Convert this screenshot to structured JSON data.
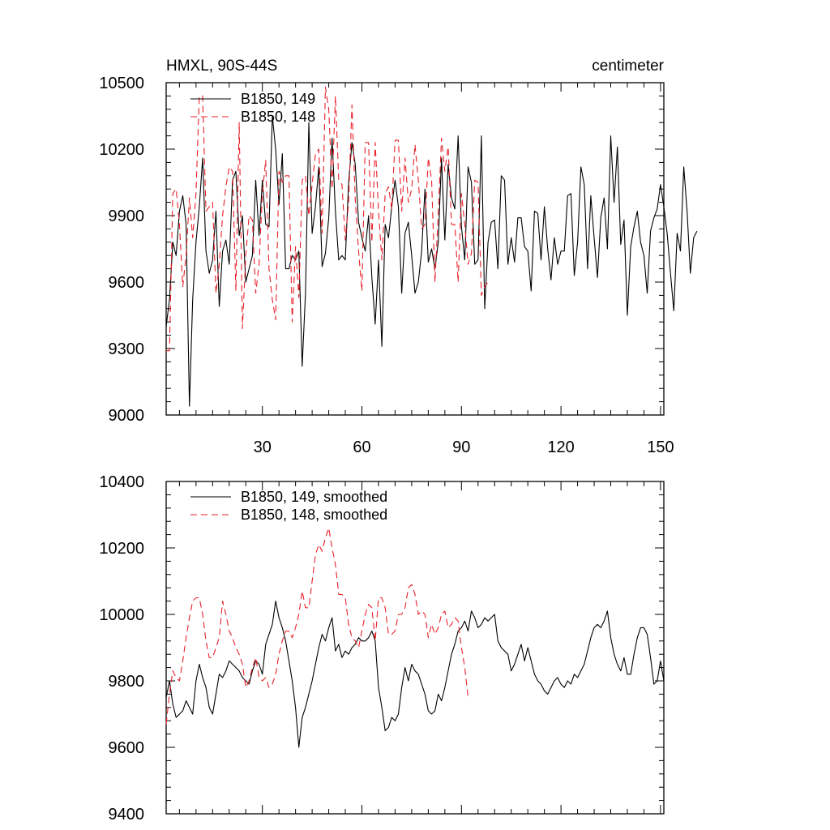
{
  "chart_data": [
    {
      "type": "line",
      "title_left": "HMXL, 90S-44S",
      "title_right": "centimeter",
      "xlim": [
        1,
        151
      ],
      "ylim": [
        9000,
        10500
      ],
      "yticks": [
        9000,
        9300,
        9600,
        9900,
        10200,
        10500
      ],
      "xticks": [
        30,
        60,
        90,
        120,
        150
      ],
      "show_x_tick_labels": true,
      "series": [
        {
          "name": "B1850, 149",
          "color": "#000000",
          "dash": "",
          "start_x": 1,
          "values": [
            9400,
            9520,
            9780,
            9720,
            9920,
            9990,
            9860,
            9040,
            9520,
            9780,
            9940,
            10160,
            9740,
            9640,
            9700,
            9920,
            9490,
            9740,
            9790,
            9680,
            10060,
            10100,
            9810,
            9900,
            9600,
            9660,
            9720,
            10060,
            9810,
            10060,
            9860,
            9850,
            10350,
            10200,
            9950,
            10180,
            9660,
            9660,
            9720,
            9700,
            9740,
            9220,
            9550,
            10320,
            9820,
            9940,
            10120,
            9670,
            9730,
            9890,
            10250,
            9920,
            9700,
            9720,
            9700,
            10050,
            10230,
            10130,
            9870,
            9800,
            9740,
            9900,
            9620,
            9410,
            9700,
            9310,
            9860,
            9800,
            9940,
            10060,
            9940,
            9550,
            9820,
            9870,
            9720,
            9550,
            9600,
            9740,
            10020,
            9690,
            9750,
            9660,
            9780,
            10160,
            9790,
            10130,
            9980,
            9930,
            10260,
            9850,
            9700,
            10120,
            10050,
            9680,
            9700,
            10260,
            9480,
            9780,
            9870,
            9880,
            9660,
            10080,
            10060,
            9680,
            9800,
            9690,
            9890,
            9890,
            9760,
            9740,
            9560,
            9920,
            9910,
            9700,
            9940,
            9750,
            9610,
            9800,
            9680,
            9740,
            9740,
            9990,
            10000,
            9630,
            9780,
            10120,
            10040,
            9660,
            9990,
            9800,
            9620,
            9890,
            9980,
            9750,
            10260,
            9960,
            10210,
            9770,
            9880,
            9450,
            9760,
            9850,
            9920,
            9780,
            9720,
            9550,
            9830,
            9890,
            9930,
            10040,
            9940,
            9820,
            9640,
            9470,
            9820,
            9740,
            10120,
            9920,
            9640,
            9800,
            9830
          ]
        },
        {
          "name": "B1850, 148",
          "color": "#e8202a",
          "dash": "8,5",
          "start_x": 1,
          "values": [
            9290,
            9290,
            10000,
            10020,
            9860,
            9580,
            9720,
            9980,
            9800,
            10000,
            10440,
            10440,
            9920,
            9940,
            9960,
            9550,
            9680,
            9900,
            10030,
            10120,
            10100,
            9560,
            10320,
            9390,
            9720,
            9900,
            9880,
            9550,
            9680,
            10000,
            10150,
            9660,
            9520,
            9430,
            10100,
            10050,
            10080,
            10080,
            9420,
            9760,
            9530,
            10060,
            10080,
            9900,
            10040,
            10180,
            10200,
            9820,
            10480,
            10380,
            10020,
            10440,
            10060,
            10040,
            9790,
            9960,
            10400,
            9970,
            9740,
            9560,
            10230,
            10230,
            9780,
            10230,
            9920,
            9700,
            10000,
            10030,
            9930,
            10240,
            10240,
            9920,
            10160,
            9960,
            10020,
            10220,
            10060,
            9840,
            9860,
            10160,
            10060,
            9600,
            9910,
            10250,
            10100,
            10210,
            9860,
            9860,
            9600,
            10000,
            9860,
            9680,
            9730,
            10060,
            10050,
            9540,
            9580,
            9600
          ]
        }
      ]
    },
    {
      "type": "line",
      "title_left": "",
      "title_right": "",
      "xlim": [
        1,
        151
      ],
      "ylim": [
        9400,
        10400
      ],
      "yticks": [
        9400,
        9600,
        9800,
        10000,
        10200,
        10400
      ],
      "xticks": [
        30,
        60,
        90,
        120,
        150
      ],
      "show_x_tick_labels": false,
      "series": [
        {
          "name": "B1850, 149, smoothed",
          "color": "#000000",
          "dash": "",
          "start_x": 1,
          "values": [
            9750,
            9800,
            9730,
            9690,
            9700,
            9710,
            9740,
            9720,
            9700,
            9800,
            9850,
            9810,
            9780,
            9720,
            9700,
            9760,
            9820,
            9810,
            9830,
            9860,
            9850,
            9840,
            9830,
            9810,
            9800,
            9790,
            9830,
            9860,
            9850,
            9820,
            9910,
            9940,
            9970,
            10040,
            9990,
            9960,
            9920,
            9860,
            9800,
            9720,
            9600,
            9690,
            9720,
            9760,
            9800,
            9850,
            9900,
            9940,
            9920,
            9960,
            9990,
            9890,
            9910,
            9870,
            9890,
            9880,
            9900,
            9910,
            9930,
            9920,
            9920,
            9930,
            9950,
            9920,
            9780,
            9720,
            9650,
            9660,
            9690,
            9680,
            9700,
            9780,
            9840,
            9800,
            9850,
            9830,
            9820,
            9790,
            9760,
            9710,
            9700,
            9710,
            9760,
            9740,
            9780,
            9830,
            9880,
            9910,
            9950,
            9960,
            9980,
            9950,
            10010,
            9990,
            9960,
            9970,
            9990,
            9980,
            9990,
            10000,
            9920,
            9900,
            9890,
            9880,
            9830,
            9850,
            9880,
            9910,
            9860,
            9900,
            9860,
            9820,
            9800,
            9790,
            9770,
            9760,
            9780,
            9800,
            9810,
            9790,
            9780,
            9800,
            9790,
            9820,
            9810,
            9830,
            9850,
            9890,
            9930,
            9960,
            9970,
            9960,
            9980,
            10010,
            9930,
            9880,
            9850,
            9830,
            9870,
            9820,
            9820,
            9880,
            9930,
            9960,
            9960,
            9940,
            9870,
            9790,
            9800,
            9860,
            9800
          ]
        },
        {
          "name": "B1850, 148, smoothed",
          "color": "#e8202a",
          "dash": "8,5",
          "start_x": 1,
          "values": [
            9670,
            9760,
            9830,
            9810,
            9800,
            9860,
            9930,
            9990,
            10040,
            10050,
            10050,
            10000,
            9920,
            9870,
            9870,
            9900,
            9930,
            10040,
            10000,
            9950,
            9930,
            9900,
            9880,
            9850,
            9780,
            9800,
            9840,
            9870,
            9810,
            9800,
            9810,
            9780,
            9790,
            9820,
            9880,
            9920,
            9950,
            9950,
            9930,
            9960,
            10000,
            10070,
            10020,
            10020,
            10100,
            10180,
            10210,
            10190,
            10230,
            10260,
            10200,
            10150,
            10060,
            10060,
            10050,
            9970,
            9930,
            9920,
            9900,
            9950,
            10000,
            10030,
            10020,
            9920,
            10050,
            10050,
            10020,
            9940,
            9940,
            9950,
            10000,
            10000,
            10020,
            10080,
            10090,
            10060,
            10000,
            10010,
            10000,
            9930,
            9970,
            9940,
            9960,
            10000,
            10010,
            9960,
            9970,
            9990,
            9980,
            9900,
            9840,
            9750
          ]
        }
      ]
    }
  ]
}
